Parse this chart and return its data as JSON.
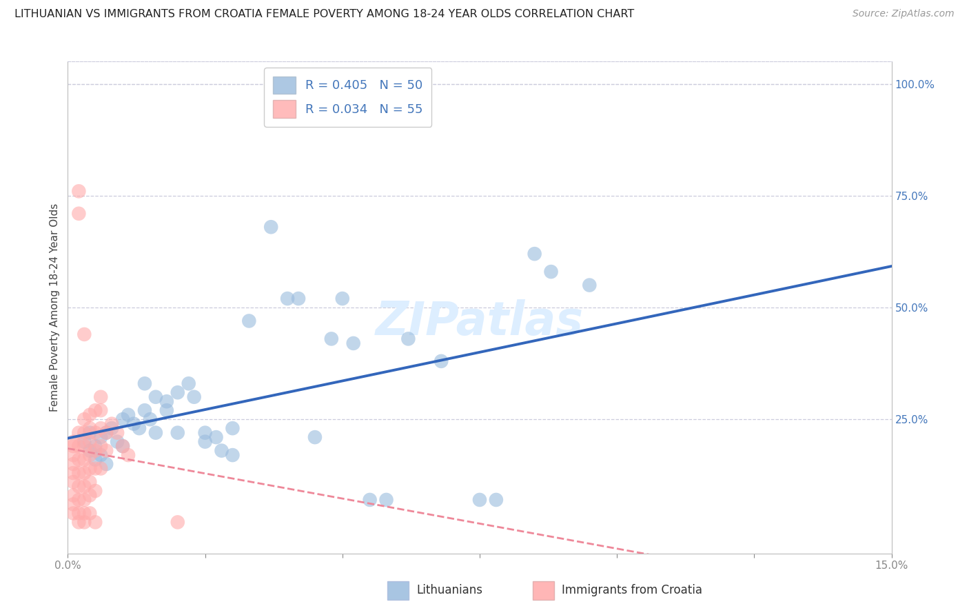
{
  "title": "LITHUANIAN VS IMMIGRANTS FROM CROATIA FEMALE POVERTY AMONG 18-24 YEAR OLDS CORRELATION CHART",
  "source": "Source: ZipAtlas.com",
  "ylabel": "Female Poverty Among 18-24 Year Olds",
  "xlim": [
    0.0,
    0.15
  ],
  "ylim": [
    -0.05,
    1.05
  ],
  "plot_ylim": [
    0.0,
    1.0
  ],
  "blue_color": "#99BBDD",
  "pink_color": "#FFAAAA",
  "blue_line_color": "#3366BB",
  "pink_line_color": "#EE8899",
  "tick_color": "#4477BB",
  "watermark": "ZIPatlas",
  "watermark_fontsize": 48,
  "watermark_color": "#DDEEFF",
  "background_color": "#FFFFFF",
  "grid_color": "#CCCCDD",
  "title_fontsize": 11.5,
  "axis_label_fontsize": 11,
  "tick_fontsize": 11,
  "legend_fontsize": 13,
  "source_fontsize": 10,
  "blue_scatter": [
    [
      0.003,
      0.2
    ],
    [
      0.004,
      0.18
    ],
    [
      0.004,
      0.22
    ],
    [
      0.005,
      0.19
    ],
    [
      0.005,
      0.16
    ],
    [
      0.006,
      0.21
    ],
    [
      0.006,
      0.17
    ],
    [
      0.007,
      0.22
    ],
    [
      0.007,
      0.15
    ],
    [
      0.008,
      0.23
    ],
    [
      0.009,
      0.2
    ],
    [
      0.01,
      0.25
    ],
    [
      0.01,
      0.19
    ],
    [
      0.011,
      0.26
    ],
    [
      0.012,
      0.24
    ],
    [
      0.013,
      0.23
    ],
    [
      0.014,
      0.27
    ],
    [
      0.014,
      0.33
    ],
    [
      0.015,
      0.25
    ],
    [
      0.016,
      0.3
    ],
    [
      0.016,
      0.22
    ],
    [
      0.018,
      0.29
    ],
    [
      0.018,
      0.27
    ],
    [
      0.02,
      0.31
    ],
    [
      0.02,
      0.22
    ],
    [
      0.022,
      0.33
    ],
    [
      0.023,
      0.3
    ],
    [
      0.025,
      0.2
    ],
    [
      0.025,
      0.22
    ],
    [
      0.027,
      0.21
    ],
    [
      0.028,
      0.18
    ],
    [
      0.03,
      0.23
    ],
    [
      0.03,
      0.17
    ],
    [
      0.033,
      0.47
    ],
    [
      0.037,
      0.68
    ],
    [
      0.04,
      0.52
    ],
    [
      0.042,
      0.52
    ],
    [
      0.045,
      0.21
    ],
    [
      0.048,
      0.43
    ],
    [
      0.05,
      0.52
    ],
    [
      0.052,
      0.42
    ],
    [
      0.055,
      0.07
    ],
    [
      0.058,
      0.07
    ],
    [
      0.062,
      0.43
    ],
    [
      0.068,
      0.38
    ],
    [
      0.075,
      0.07
    ],
    [
      0.078,
      0.07
    ],
    [
      0.085,
      0.62
    ],
    [
      0.088,
      0.58
    ],
    [
      0.095,
      0.55
    ]
  ],
  "pink_scatter": [
    [
      0.001,
      0.2
    ],
    [
      0.001,
      0.19
    ],
    [
      0.001,
      0.17
    ],
    [
      0.001,
      0.15
    ],
    [
      0.001,
      0.13
    ],
    [
      0.001,
      0.11
    ],
    [
      0.001,
      0.08
    ],
    [
      0.001,
      0.06
    ],
    [
      0.001,
      0.04
    ],
    [
      0.002,
      0.76
    ],
    [
      0.002,
      0.71
    ],
    [
      0.002,
      0.22
    ],
    [
      0.002,
      0.19
    ],
    [
      0.002,
      0.16
    ],
    [
      0.002,
      0.13
    ],
    [
      0.002,
      0.1
    ],
    [
      0.002,
      0.07
    ],
    [
      0.002,
      0.04
    ],
    [
      0.002,
      0.02
    ],
    [
      0.003,
      0.44
    ],
    [
      0.003,
      0.25
    ],
    [
      0.003,
      0.22
    ],
    [
      0.003,
      0.19
    ],
    [
      0.003,
      0.16
    ],
    [
      0.003,
      0.13
    ],
    [
      0.003,
      0.1
    ],
    [
      0.003,
      0.07
    ],
    [
      0.003,
      0.04
    ],
    [
      0.003,
      0.02
    ],
    [
      0.004,
      0.26
    ],
    [
      0.004,
      0.23
    ],
    [
      0.004,
      0.2
    ],
    [
      0.004,
      0.17
    ],
    [
      0.004,
      0.14
    ],
    [
      0.004,
      0.11
    ],
    [
      0.004,
      0.08
    ],
    [
      0.004,
      0.04
    ],
    [
      0.005,
      0.27
    ],
    [
      0.005,
      0.22
    ],
    [
      0.005,
      0.18
    ],
    [
      0.005,
      0.14
    ],
    [
      0.005,
      0.09
    ],
    [
      0.005,
      0.02
    ],
    [
      0.006,
      0.3
    ],
    [
      0.006,
      0.27
    ],
    [
      0.006,
      0.23
    ],
    [
      0.006,
      0.19
    ],
    [
      0.006,
      0.14
    ],
    [
      0.007,
      0.22
    ],
    [
      0.007,
      0.18
    ],
    [
      0.008,
      0.24
    ],
    [
      0.009,
      0.22
    ],
    [
      0.01,
      0.19
    ],
    [
      0.011,
      0.17
    ],
    [
      0.02,
      0.02
    ]
  ],
  "legend_R_blue": "R = 0.405",
  "legend_N_blue": "N = 50",
  "legend_R_pink": "R = 0.034",
  "legend_N_pink": "N = 55",
  "label_blue": "Lithuanians",
  "label_pink": "Immigrants from Croatia"
}
